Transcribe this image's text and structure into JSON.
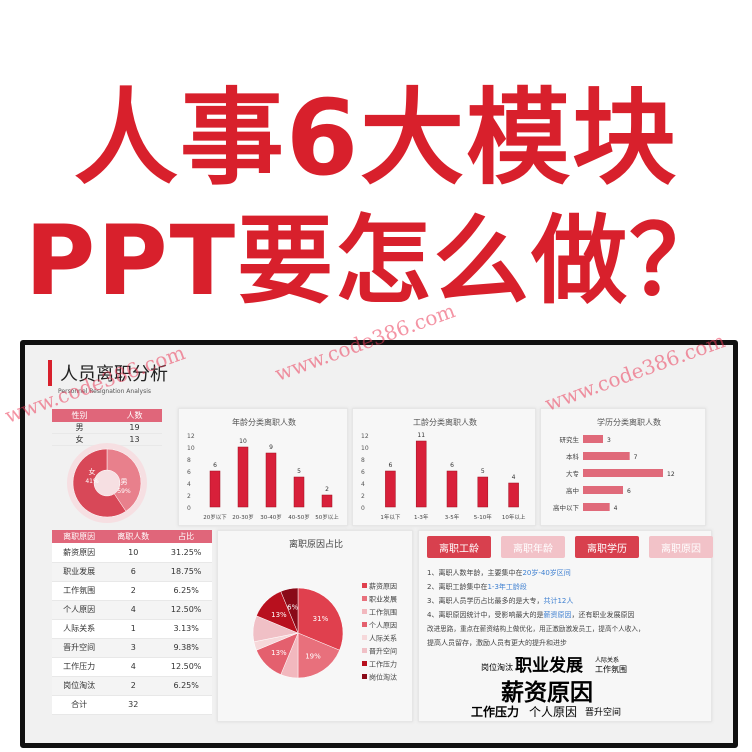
{
  "headline": {
    "line1": "人事6大模块",
    "line2": "PPT要怎么做？"
  },
  "watermark": "www.code386.com",
  "dashboard": {
    "title": "人员离职分析",
    "subtitle": "Personnel Resignation Analysis",
    "gender_table": {
      "headers": [
        "性别",
        "人数"
      ],
      "rows": [
        [
          "男",
          "19"
        ],
        [
          "女",
          "13"
        ]
      ]
    },
    "reason_table": {
      "headers": [
        "离职原因",
        "离职人数",
        "占比"
      ],
      "rows": [
        [
          "薪资原因",
          "10",
          "31.25%"
        ],
        [
          "职业发展",
          "6",
          "18.75%"
        ],
        [
          "工作氛围",
          "2",
          "6.25%"
        ],
        [
          "个人原因",
          "4",
          "12.50%"
        ],
        [
          "人际关系",
          "1",
          "3.13%"
        ],
        [
          "晋升空间",
          "3",
          "9.38%"
        ],
        [
          "工作压力",
          "4",
          "12.50%"
        ],
        [
          "岗位淘汰",
          "2",
          "6.25%"
        ],
        [
          "合计",
          "32",
          ""
        ]
      ]
    },
    "buttons": [
      {
        "label": "离职工龄",
        "active": true
      },
      {
        "label": "离职年龄",
        "active": false
      },
      {
        "label": "离职学历",
        "active": true
      },
      {
        "label": "离职原因",
        "active": false
      }
    ],
    "notes": {
      "l1a": "1、离职人数年龄，主要集中在",
      "l1b": "20岁-40岁区间",
      "l2a": "2、离职工龄集中在",
      "l2b": "1-3年工龄段",
      "l3a": "3、离职人员学历占比最多的是大专，",
      "l3b": "共计12人",
      "l4a": "4、离职原因统计中，受影响最大的是",
      "l4b": "薪资原因",
      "l4c": "，还有职业发展原因",
      "l5": "改进思路，重点在薪资结构上做优化，用正激励激发员工，提高个人收入，",
      "l6": "提高人员留存，激励人员有更大的提升和进步"
    },
    "wordcloud": [
      {
        "text": "岗位淘汰",
        "color": "#6a4aa0"
      },
      {
        "text": "职业发展",
        "color": "#3aa26a"
      },
      {
        "text": "人际关系",
        "color": "#e8d040"
      },
      {
        "text": "工作氛围",
        "color": "#333333"
      },
      {
        "text": "薪资原因",
        "color": "#2f7fc0"
      },
      {
        "text": "工作压力",
        "color": "#d0304a"
      },
      {
        "text": "个人原因",
        "color": "#9ec6d0"
      },
      {
        "text": "晋升空间",
        "color": "#e08a30"
      }
    ]
  },
  "colors": {
    "accent": "#d8202c",
    "bar": "#d8203a",
    "hbar": "#e06a7a"
  },
  "chart_data": [
    {
      "type": "pie",
      "title": "",
      "donut": true,
      "categories": [
        "女",
        "男"
      ],
      "values": [
        13,
        19
      ],
      "labels": [
        "41%",
        "59%"
      ]
    },
    {
      "type": "bar",
      "title": "年龄分类离职人数",
      "categories": [
        "20岁以下",
        "20-30岁",
        "30-40岁",
        "40-50岁",
        "50岁以上"
      ],
      "values": [
        6,
        10,
        9,
        5,
        2
      ],
      "ylim": [
        0,
        12
      ],
      "yticks": [
        0,
        2,
        4,
        6,
        8,
        10,
        12
      ]
    },
    {
      "type": "bar",
      "title": "工龄分类离职人数",
      "categories": [
        "1年以下",
        "1-3年",
        "3-5年",
        "5-10年",
        "10年以上"
      ],
      "values": [
        6,
        11,
        6,
        5,
        4
      ],
      "ylim": [
        0,
        12
      ],
      "yticks": [
        0,
        2,
        4,
        6,
        8,
        10,
        12
      ]
    },
    {
      "type": "bar",
      "orientation": "horizontal",
      "title": "学历分类离职人数",
      "categories": [
        "研究生",
        "本科",
        "大专",
        "高中",
        "高中以下"
      ],
      "values": [
        3,
        7,
        12,
        6,
        4
      ]
    },
    {
      "type": "pie",
      "title": "离职原因占比",
      "categories": [
        "薪资原因",
        "职业发展",
        "工作氛围",
        "个人原因",
        "人际关系",
        "晋升空间",
        "工作压力",
        "岗位淘汰"
      ],
      "values": [
        10,
        6,
        2,
        4,
        1,
        3,
        4,
        2
      ],
      "labels": [
        "31%",
        "19%",
        "",
        "13%",
        "",
        "",
        "13%",
        "6%"
      ],
      "colors": [
        "#e0404e",
        "#e8707c",
        "#f2b8be",
        "#e4606e",
        "#f6d8da",
        "#f0c0c6",
        "#b8101e",
        "#8a0a18"
      ],
      "legend": "right"
    }
  ]
}
